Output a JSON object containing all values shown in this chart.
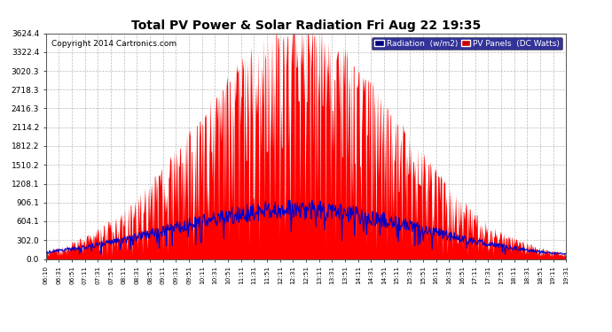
{
  "title": "Total PV Power & Solar Radiation Fri Aug 22 19:35",
  "copyright": "Copyright 2014 Cartronics.com",
  "background_color": "#ffffff",
  "plot_bg_color": "#ffffff",
  "grid_color": "#aaaaaa",
  "y_max": 3624.4,
  "y_ticks": [
    0.0,
    302.0,
    604.1,
    906.1,
    1208.1,
    1510.2,
    1812.2,
    2114.2,
    2416.3,
    2718.3,
    3020.3,
    3322.4,
    3624.4
  ],
  "x_labels": [
    "06:10",
    "06:31",
    "06:51",
    "07:11",
    "07:31",
    "07:51",
    "08:11",
    "08:31",
    "08:51",
    "09:11",
    "09:31",
    "09:51",
    "10:11",
    "10:31",
    "10:51",
    "11:11",
    "11:31",
    "11:51",
    "12:11",
    "12:31",
    "12:51",
    "13:11",
    "13:31",
    "13:51",
    "14:11",
    "14:31",
    "14:51",
    "15:11",
    "15:31",
    "15:51",
    "16:11",
    "16:31",
    "16:51",
    "17:11",
    "17:31",
    "17:51",
    "18:11",
    "18:31",
    "18:51",
    "19:11",
    "19:31"
  ],
  "pv_color": "#ff0000",
  "radiation_color": "#0000cc",
  "legend_radiation_bg": "#000080",
  "legend_pv_bg": "#cc0000"
}
